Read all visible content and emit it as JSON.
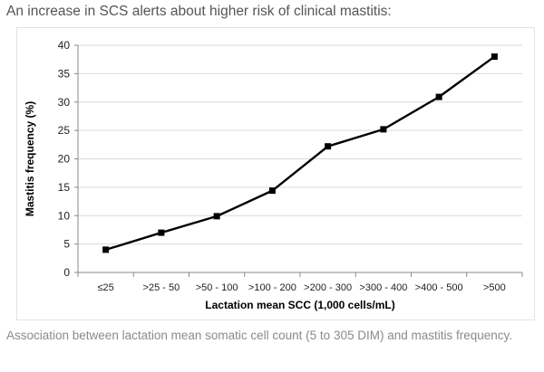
{
  "heading": "An increase in SCS alerts about higher risk of clinical mastitis:",
  "caption": "Association between lactation mean somatic cell count (5 to 305 DIM) and mastitis frequency.",
  "chart_data": {
    "type": "line",
    "categories": [
      "≤25",
      ">25 - 50",
      ">50 - 100",
      ">100 - 200",
      ">200 - 300",
      ">300 - 400",
      ">400 - 500",
      ">500"
    ],
    "series": [
      {
        "values": [
          4.0,
          7.0,
          9.9,
          14.4,
          22.2,
          25.2,
          30.9,
          38.0
        ]
      }
    ],
    "xlabel": "Lactation mean SCC (1,000 cells/mL)",
    "ylabel": "Mastitis frequency (%)",
    "ylim": [
      0,
      40
    ],
    "yticks": [
      0,
      5,
      10,
      15,
      20,
      25,
      30,
      35,
      40
    ],
    "grid": "horizontal",
    "legend": "none",
    "line_color": "#000000",
    "grid_color": "#d9d9d9"
  }
}
